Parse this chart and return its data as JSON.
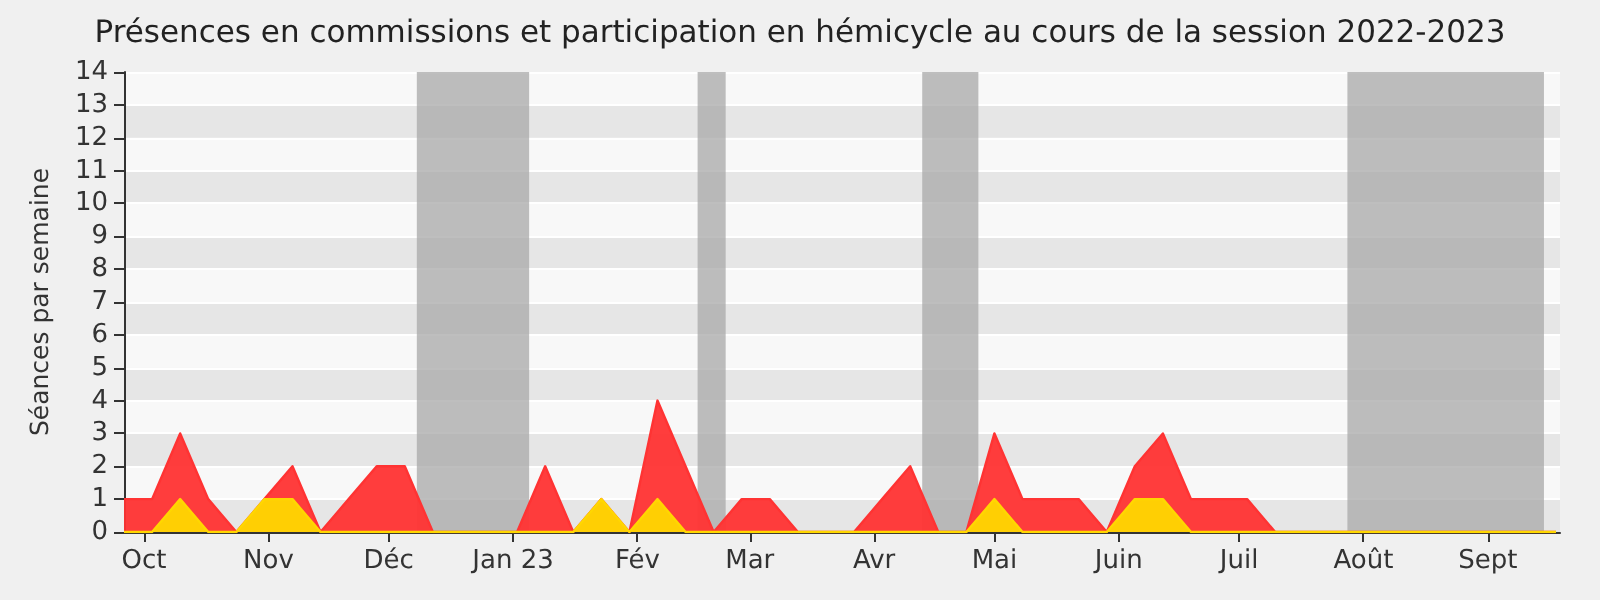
{
  "chart_data": {
    "type": "area",
    "title": "Présences en commissions et participation en hémicycle au cours de la session 2022-2023",
    "ylabel": "Séances par semaine",
    "x": [
      "2022-09-26",
      "2022-10-03",
      "2022-10-10",
      "2022-10-17",
      "2022-10-24",
      "2022-10-31",
      "2022-11-07",
      "2022-11-14",
      "2022-11-21",
      "2022-11-28",
      "2022-12-05",
      "2022-12-12",
      "2022-12-19",
      "2022-12-26",
      "2023-01-02",
      "2023-01-09",
      "2023-01-16",
      "2023-01-23",
      "2023-01-30",
      "2023-02-06",
      "2023-02-13",
      "2023-02-20",
      "2023-02-27",
      "2023-03-06",
      "2023-03-13",
      "2023-03-20",
      "2023-03-27",
      "2023-04-03",
      "2023-04-10",
      "2023-04-17",
      "2023-04-24",
      "2023-05-01",
      "2023-05-08",
      "2023-05-15",
      "2023-05-22",
      "2023-05-29",
      "2023-06-05",
      "2023-06-12",
      "2023-06-19",
      "2023-06-26",
      "2023-07-03",
      "2023-07-10",
      "2023-07-17",
      "2023-07-24",
      "2023-07-31",
      "2023-08-07",
      "2023-08-14",
      "2023-08-21",
      "2023-08-28",
      "2023-09-04",
      "2023-09-11",
      "2023-09-18"
    ],
    "series": [
      {
        "color": "#ff3333",
        "values": [
          1,
          1,
          3,
          1,
          0,
          1,
          2,
          0,
          1,
          2,
          2,
          0,
          0,
          0,
          0,
          2,
          0,
          1,
          0,
          4,
          2,
          0,
          1,
          1,
          0,
          0,
          0,
          1,
          2,
          0,
          0,
          3,
          1,
          1,
          1,
          0,
          2,
          3,
          1,
          1,
          1,
          0,
          0,
          0,
          0,
          0,
          0,
          0,
          0,
          0,
          0,
          0
        ]
      },
      {
        "color": "#ffd700",
        "values": [
          0,
          0,
          1,
          0,
          0,
          1,
          1,
          0,
          0,
          0,
          0,
          0,
          0,
          0,
          0,
          0,
          0,
          1,
          0,
          1,
          0,
          0,
          0,
          0,
          0,
          0,
          0,
          0,
          0,
          0,
          0,
          1,
          0,
          0,
          0,
          0,
          1,
          1,
          0,
          0,
          0,
          0,
          0,
          0,
          0,
          0,
          0,
          0,
          0,
          0,
          0,
          0
        ]
      }
    ],
    "xlim": [
      "2022-09-26",
      "2023-09-19"
    ],
    "xticks": [
      {
        "value": "2022-10-01",
        "label": "Oct"
      },
      {
        "value": "2022-11-01",
        "label": "Nov"
      },
      {
        "value": "2022-12-01",
        "label": "Déc"
      },
      {
        "value": "2023-01-01",
        "label": "Jan 23"
      },
      {
        "value": "2023-02-01",
        "label": "Fév"
      },
      {
        "value": "2023-03-01",
        "label": "Mar"
      },
      {
        "value": "2023-04-01",
        "label": "Avr"
      },
      {
        "value": "2023-05-01",
        "label": "Mai"
      },
      {
        "value": "2023-06-01",
        "label": "Juin"
      },
      {
        "value": "2023-07-01",
        "label": "Juil"
      },
      {
        "value": "2023-08-01",
        "label": "Août"
      },
      {
        "value": "2023-09-01",
        "label": "Sept"
      }
    ],
    "ylim": [
      0,
      14
    ],
    "yticks": [
      0,
      1,
      2,
      3,
      4,
      5,
      6,
      7,
      8,
      9,
      10,
      11,
      12,
      13,
      14
    ],
    "bands": [
      {
        "axis": "x",
        "from": "2022-12-08",
        "to": "2023-01-05",
        "color": "#a8a8a8"
      },
      {
        "axis": "x",
        "from": "2023-02-16",
        "to": "2023-02-23",
        "color": "#a8a8a8"
      },
      {
        "axis": "x",
        "from": "2023-04-13",
        "to": "2023-04-27",
        "color": "#a8a8a8"
      },
      {
        "axis": "x",
        "from": "2023-07-28",
        "to": "2023-09-15",
        "color": "#a8a8a8"
      }
    ],
    "grid": "y",
    "marker": "none"
  }
}
